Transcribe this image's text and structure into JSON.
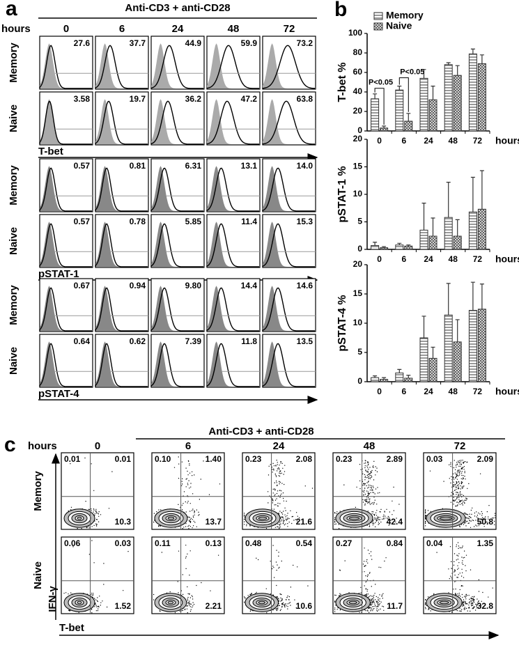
{
  "panel_a": {
    "label": "a",
    "header": "Anti-CD3 + anti-CD28",
    "hours_label": "hours",
    "hours": [
      "0",
      "6",
      "24",
      "48",
      "72"
    ],
    "groups": [
      {
        "marker": "T-bet",
        "rows": [
          {
            "name": "Memory",
            "values": [
              "27.6",
              "37.7",
              "44.9",
              "59.9",
              "73.2"
            ]
          },
          {
            "name": "Naive",
            "values": [
              "3.58",
              "19.7",
              "36.2",
              "47.2",
              "63.8"
            ]
          }
        ]
      },
      {
        "marker": "pSTAT-1",
        "rows": [
          {
            "name": "Memory",
            "values": [
              "0.57",
              "0.81",
              "6.31",
              "13.1",
              "14.0"
            ]
          },
          {
            "name": "Naive",
            "values": [
              "0.57",
              "0.78",
              "5.85",
              "11.4",
              "15.3"
            ]
          }
        ]
      },
      {
        "marker": "pSTAT-4",
        "rows": [
          {
            "name": "Memory",
            "values": [
              "0.67",
              "0.94",
              "9.80",
              "14.4",
              "14.6"
            ]
          },
          {
            "name": "Naive",
            "values": [
              "0.64",
              "0.62",
              "7.39",
              "11.8",
              "13.5"
            ]
          }
        ]
      }
    ]
  },
  "panel_b_label": "b",
  "chart_data": [
    {
      "type": "bar",
      "y_label": "T-bet %",
      "x_label": "hours",
      "categories": [
        "0",
        "6",
        "24",
        "48",
        "72"
      ],
      "ylim": [
        0,
        100
      ],
      "yticks": [
        0,
        20,
        40,
        60,
        80,
        100
      ],
      "series": [
        {
          "name": "Memory",
          "pattern": "horizontal",
          "values": [
            33,
            42,
            54,
            68,
            79
          ],
          "errors": [
            5,
            4,
            9,
            2,
            5
          ]
        },
        {
          "name": "Naive",
          "pattern": "crosshatch",
          "values": [
            3,
            10,
            32,
            57,
            69
          ],
          "errors": [
            2,
            8,
            14,
            10,
            9
          ]
        }
      ],
      "annotations": [
        "P<0.05",
        "P<0.05"
      ]
    },
    {
      "type": "bar",
      "y_label": "pSTAT-1 %",
      "x_label": "hours",
      "categories": [
        "0",
        "6",
        "24",
        "48",
        "72"
      ],
      "ylim": [
        0,
        20
      ],
      "yticks": [
        0,
        5,
        10,
        15,
        20
      ],
      "series": [
        {
          "pattern": "horizontal",
          "values": [
            0.7,
            0.8,
            3.5,
            5.8,
            6.8
          ],
          "errors": [
            0.6,
            0.3,
            4.9,
            6.4,
            6.3
          ]
        },
        {
          "pattern": "crosshatch",
          "values": [
            0.3,
            0.6,
            2.4,
            2.4,
            7.3
          ],
          "errors": [
            0.2,
            0.2,
            3.3,
            3.0,
            7.0
          ]
        }
      ]
    },
    {
      "type": "bar",
      "y_label": "pSTAT-4 %",
      "x_label": "hours",
      "categories": [
        "0",
        "6",
        "24",
        "48",
        "72"
      ],
      "ylim": [
        0,
        20
      ],
      "yticks": [
        0,
        5,
        10,
        15,
        20
      ],
      "series": [
        {
          "pattern": "horizontal",
          "values": [
            0.7,
            1.5,
            7.5,
            11.4,
            12.2
          ],
          "errors": [
            0.3,
            0.6,
            3.7,
            5.4,
            4.8
          ]
        },
        {
          "pattern": "crosshatch",
          "values": [
            0.4,
            0.6,
            4.0,
            6.8,
            12.4
          ],
          "errors": [
            0.3,
            0.5,
            1.9,
            3.8,
            4.3
          ]
        }
      ]
    }
  ],
  "panel_c": {
    "label": "c",
    "header": "Anti-CD3 + anti-CD28",
    "hours_label": "hours",
    "hours": [
      "0",
      "6",
      "24",
      "48",
      "72"
    ],
    "x_axis": "T-bet",
    "y_axis": "IFN-γ",
    "rows": [
      {
        "name": "Memory",
        "quadrants": [
          [
            "0.01",
            "0.01",
            "10.3"
          ],
          [
            "0.10",
            "1.40",
            "13.7"
          ],
          [
            "0.23",
            "2.08",
            "21.6"
          ],
          [
            "0.23",
            "2.89",
            "42.4"
          ],
          [
            "0.03",
            "2.09",
            "50.8"
          ]
        ]
      },
      {
        "name": "Naive",
        "quadrants": [
          [
            "0.06",
            "0.03",
            "1.52"
          ],
          [
            "0.11",
            "0.13",
            "2.21"
          ],
          [
            "0.48",
            "0.54",
            "10.6"
          ],
          [
            "0.27",
            "0.84",
            "11.7"
          ],
          [
            "0.04",
            "1.35",
            "32.8"
          ]
        ]
      }
    ]
  }
}
